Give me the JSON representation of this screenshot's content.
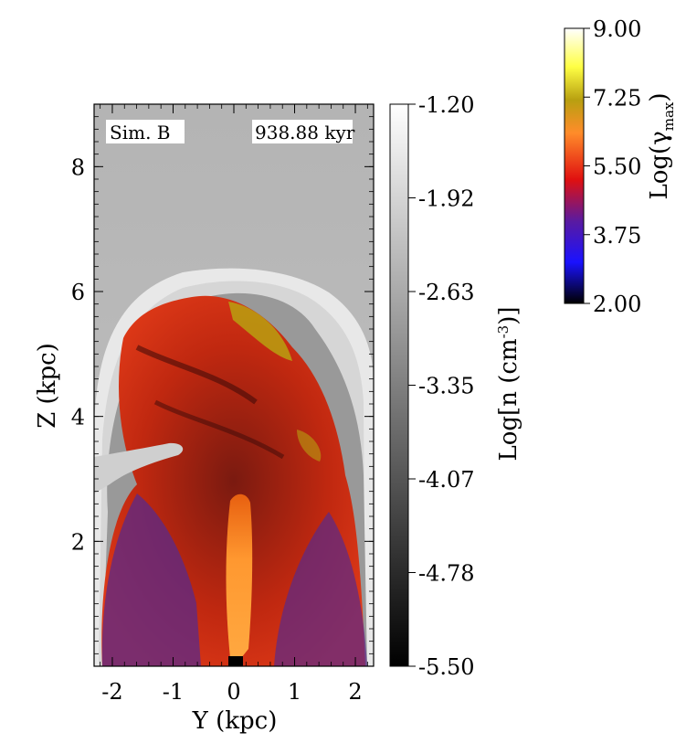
{
  "chart_data": {
    "type": "heatmap",
    "panel_label": "Sim. B",
    "time_label": "938.88 kyr",
    "xlabel": "Y (kpc)",
    "ylabel": "Z (kpc)",
    "xlim": [
      -2.3,
      2.3
    ],
    "ylim": [
      0,
      9.0
    ],
    "x_ticks": [
      "-2",
      "-1",
      "0",
      "1",
      "2"
    ],
    "x_tick_values": [
      -2,
      -1,
      0,
      1,
      2
    ],
    "y_ticks": [
      "2",
      "4",
      "6",
      "8"
    ],
    "y_tick_values": [
      2,
      4,
      6,
      8
    ],
    "density_colorbar": {
      "label_prefix": "Log[n (cm",
      "label_exp": "-3",
      "label_suffix": ")]",
      "ticks": [
        "-1.20",
        "-1.92",
        "-2.63",
        "-3.35",
        "-4.07",
        "-4.78",
        "-5.50"
      ],
      "range": [
        -5.5,
        -1.2
      ],
      "colors": [
        "#000000",
        "#ffffff"
      ]
    },
    "gamma_colorbar": {
      "label_prefix": "Log(γ",
      "label_sub": "max",
      "label_suffix": ")",
      "ticks": [
        "9.00",
        "7.25",
        "5.50",
        "3.75",
        "2.00"
      ],
      "range": [
        2.0,
        9.0
      ],
      "colors": [
        "#000000",
        "#1a12ff",
        "#5a1aa0",
        "#e01010",
        "#ff8c2a",
        "#b8a010",
        "#ffff44",
        "#ffffff"
      ]
    }
  }
}
